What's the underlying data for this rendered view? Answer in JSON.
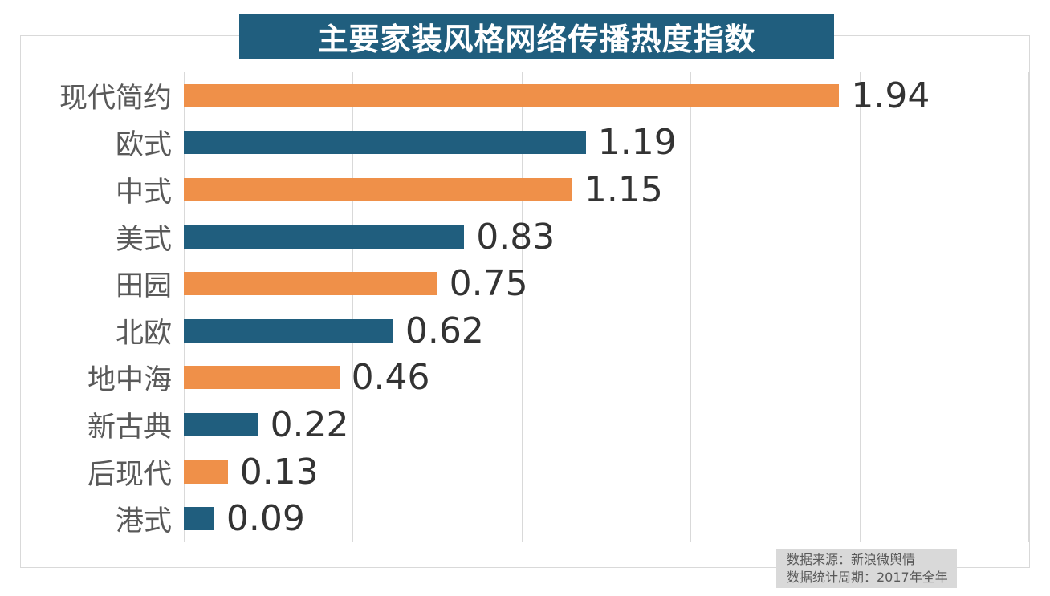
{
  "title": "主要家装风格网络传播热度指数",
  "colors": {
    "title_bg": "#205E7E",
    "title_text": "#FFFFFF",
    "bar_orange": "#EF9049",
    "bar_teal": "#205E7E",
    "grid_line": "#D9D9D9",
    "frame_border": "#D9D9D9",
    "category_label": "#595959",
    "value_label": "#333333",
    "source_bg": "#D9D9D9",
    "source_text": "#595959"
  },
  "chart_data": {
    "type": "bar",
    "orientation": "horizontal",
    "title": "主要家装风格网络传播热度指数",
    "categories": [
      "现代简约",
      "欧式",
      "中式",
      "美式",
      "田园",
      "北欧",
      "地中海",
      "新古典",
      "后现代",
      "港式"
    ],
    "values": [
      1.94,
      1.19,
      1.15,
      0.83,
      0.75,
      0.62,
      0.46,
      0.22,
      0.13,
      0.09
    ],
    "value_labels": [
      "1.94",
      "1.19",
      "1.15",
      "0.83",
      "0.75",
      "0.62",
      "0.46",
      "0.22",
      "0.13",
      "0.09"
    ],
    "xlim": [
      0,
      2.5
    ],
    "grid_interval": 0.5,
    "gridlines": true,
    "legend": "none",
    "bar_color_pattern": [
      "#EF9049",
      "#205E7E"
    ]
  },
  "source": {
    "line1": "数据来源：新浪微舆情",
    "line2": "数据统计周期：2017年全年"
  }
}
